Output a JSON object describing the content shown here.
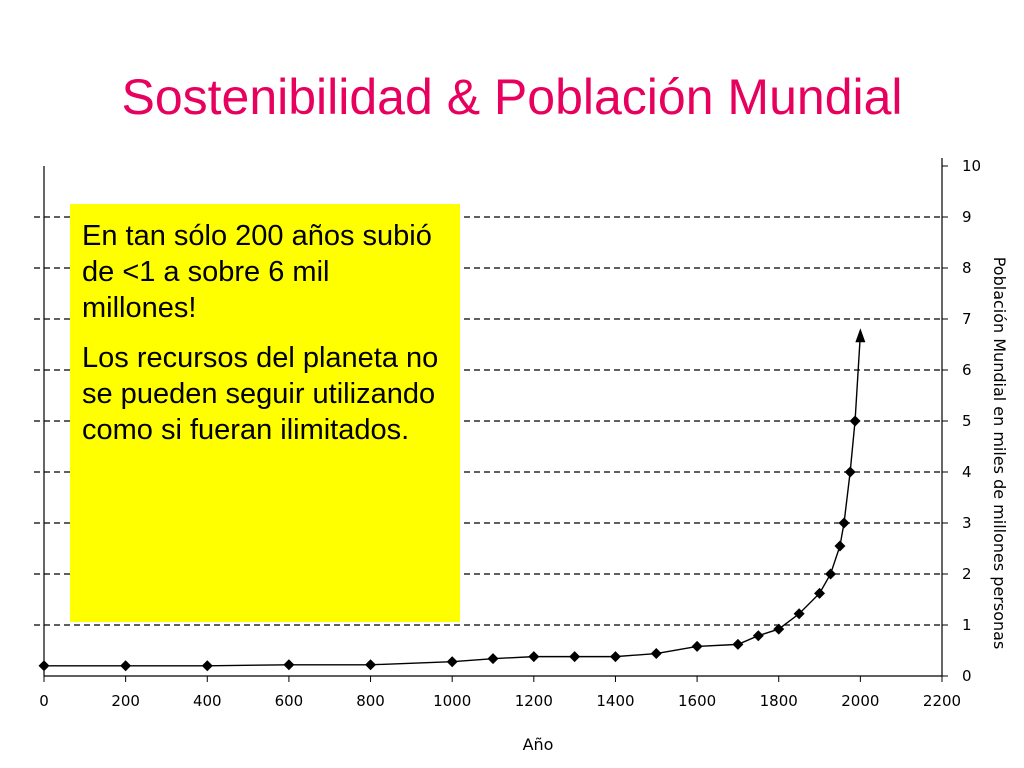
{
  "title": "Sostenibilidad & Población Mundial",
  "colors": {
    "title": "#e8005e",
    "callout_background": "#ffff00",
    "line": "#000000",
    "grid": "#000000"
  },
  "callout": {
    "paragraph1": "En tan sólo 200 años subió de <1 a sobre 6 mil millones!",
    "paragraph2": "Los recursos del planeta no se pueden seguir utilizando como si fueran ilimitados."
  },
  "chart_data": {
    "type": "line",
    "title": "",
    "xlabel": "Año",
    "ylabel": "Población Mundial en miles de millones  personas",
    "xlim": [
      0,
      2200
    ],
    "ylim": [
      0,
      10
    ],
    "x_ticks": [
      0,
      200,
      400,
      600,
      800,
      1000,
      1200,
      1400,
      1600,
      1800,
      2000,
      2200
    ],
    "y_ticks": [
      0,
      1,
      2,
      3,
      4,
      5,
      6,
      7,
      8,
      9,
      10
    ],
    "grid": "horizontal dashed",
    "y_axis_side": "right",
    "series": [
      {
        "x": [
          0,
          200,
          400,
          600,
          800,
          1000,
          1100,
          1200,
          1300,
          1400,
          1500,
          1600,
          1700,
          1750,
          1800,
          1850,
          1900,
          1927,
          1950,
          1960,
          1975,
          1987,
          2000
        ],
        "y": [
          0.2,
          0.2,
          0.2,
          0.22,
          0.22,
          0.28,
          0.34,
          0.38,
          0.38,
          0.38,
          0.44,
          0.58,
          0.62,
          0.79,
          0.92,
          1.22,
          1.62,
          2.0,
          2.55,
          3.0,
          4.0,
          5.0,
          6.7
        ],
        "markers": [
          true,
          true,
          true,
          true,
          true,
          true,
          true,
          true,
          true,
          true,
          true,
          true,
          true,
          true,
          true,
          true,
          true,
          true,
          true,
          true,
          true,
          true,
          false
        ],
        "end_arrow": true
      }
    ]
  }
}
